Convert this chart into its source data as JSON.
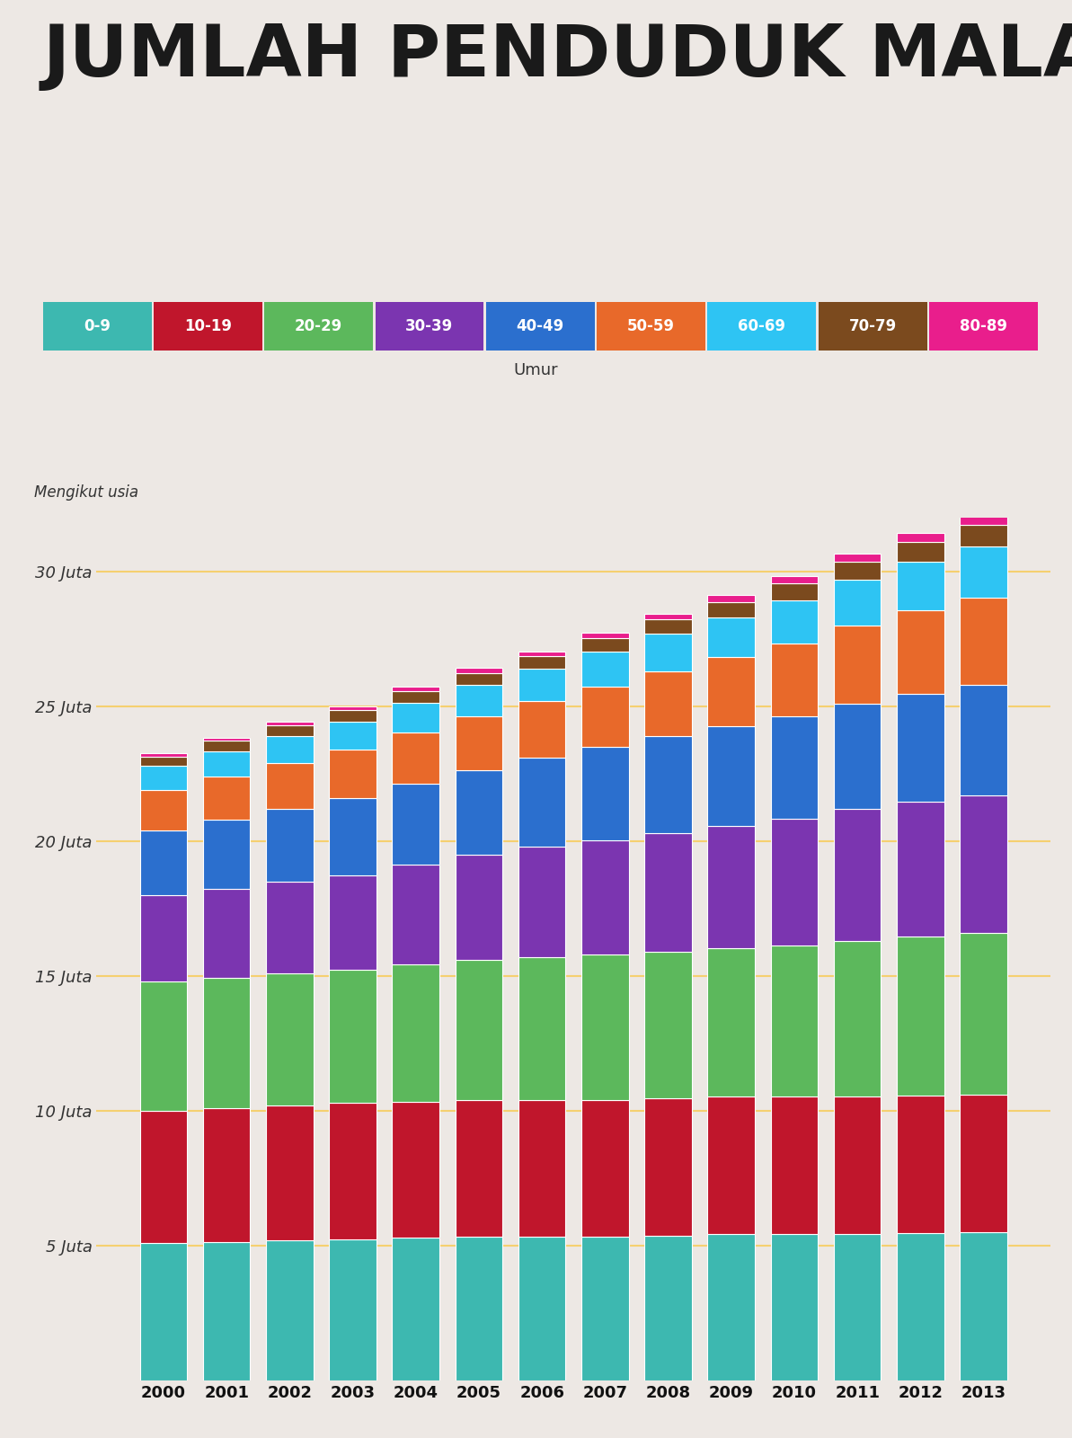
{
  "title": "JUMLAH PENDUDUK MALAYSIA",
  "background_color": "#ede8e4",
  "title_color": "#1a1a1a",
  "years": [
    2000,
    2001,
    2002,
    2003,
    2004,
    2005,
    2006,
    2007,
    2008,
    2009,
    2010,
    2011,
    2012,
    2013
  ],
  "age_groups": [
    "0-9",
    "10-19",
    "20-29",
    "30-39",
    "40-49",
    "50-59",
    "60-69",
    "70-79",
    "80-89"
  ],
  "colors": [
    "#3db8b0",
    "#c0162c",
    "#5cb85c",
    "#7b35b0",
    "#2b6fce",
    "#e8692a",
    "#2ec4f3",
    "#7b4a1e",
    "#e91e8c"
  ],
  "legend_label": "Umur",
  "ylabel": "Mengikut usia",
  "ytick_labels": [
    "5 Juta",
    "10 Juta",
    "15 Juta",
    "20 Juta",
    "25 Juta",
    "30 Juta"
  ],
  "ytick_values": [
    5000000,
    10000000,
    15000000,
    20000000,
    25000000,
    30000000
  ],
  "data": {
    "0-9": [
      5100000,
      5150000,
      5200000,
      5250000,
      5300000,
      5350000,
      5350000,
      5350000,
      5380000,
      5420000,
      5450000,
      5450000,
      5480000,
      5500000
    ],
    "10-19": [
      4900000,
      4950000,
      5000000,
      5050000,
      5050000,
      5050000,
      5050000,
      5050000,
      5080000,
      5100000,
      5100000,
      5100000,
      5100000,
      5100000
    ],
    "20-29": [
      4800000,
      4850000,
      4900000,
      4950000,
      5100000,
      5200000,
      5300000,
      5400000,
      5450000,
      5500000,
      5600000,
      5750000,
      5900000,
      6000000
    ],
    "30-39": [
      3200000,
      3300000,
      3400000,
      3500000,
      3700000,
      3900000,
      4100000,
      4250000,
      4400000,
      4550000,
      4700000,
      4900000,
      5000000,
      5100000
    ],
    "40-49": [
      2400000,
      2550000,
      2700000,
      2850000,
      3000000,
      3150000,
      3300000,
      3450000,
      3600000,
      3700000,
      3800000,
      3900000,
      4000000,
      4100000
    ],
    "50-59": [
      1500000,
      1600000,
      1700000,
      1800000,
      1900000,
      2000000,
      2100000,
      2250000,
      2400000,
      2550000,
      2700000,
      2900000,
      3100000,
      3250000
    ],
    "60-69": [
      900000,
      950000,
      1000000,
      1050000,
      1100000,
      1150000,
      1200000,
      1280000,
      1380000,
      1480000,
      1580000,
      1700000,
      1800000,
      1900000
    ],
    "70-79": [
      350000,
      370000,
      390000,
      410000,
      430000,
      450000,
      470000,
      500000,
      540000,
      580000,
      630000,
      680000,
      730000,
      780000
    ],
    "80-89": [
      120000,
      130000,
      140000,
      150000,
      160000,
      170000,
      180000,
      200000,
      220000,
      240000,
      270000,
      300000,
      330000,
      360000
    ]
  },
  "bar_width": 0.75,
  "grid_color": "#f5d070",
  "ylim": [
    0,
    32000000
  ]
}
